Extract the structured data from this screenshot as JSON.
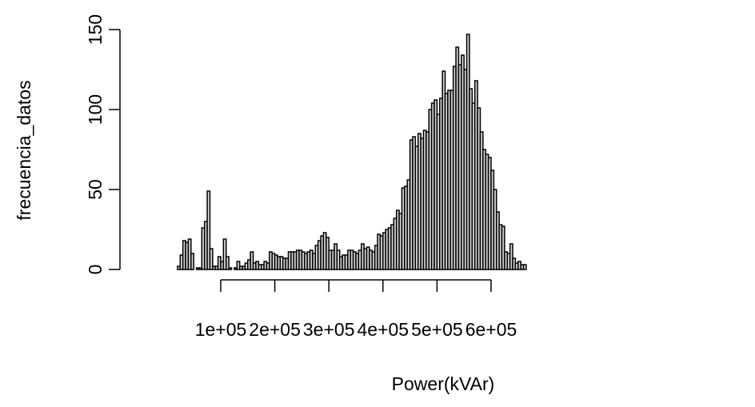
{
  "chart_data": {
    "type": "histogram",
    "title": "",
    "xlabel": "Power(kVAr)",
    "ylabel": "frecuencia_datos",
    "xlim": [
      0,
      650000
    ],
    "ylim": [
      0,
      150
    ],
    "bin_width": 5000,
    "bin_start": 20000,
    "x_ticks": [
      100000,
      200000,
      300000,
      400000,
      500000,
      600000
    ],
    "x_tick_labels": [
      "1e+05",
      "2e+05",
      "3e+05",
      "4e+05",
      "5e+05",
      "6e+05"
    ],
    "y_ticks": [
      0,
      50,
      100,
      150
    ],
    "y_tick_labels": [
      "0",
      "50",
      "100",
      "150"
    ],
    "bar_fill": "#d3d3d3",
    "bar_stroke": "#000000",
    "values": [
      2,
      9,
      18,
      17,
      19,
      10,
      0,
      1,
      1,
      26,
      30,
      49,
      13,
      2,
      2,
      8,
      5,
      19,
      8,
      1,
      0,
      1,
      5,
      2,
      2,
      4,
      6,
      11,
      4,
      5,
      3,
      3,
      5,
      4,
      11,
      10,
      9,
      8,
      8,
      7,
      7,
      11,
      11,
      11,
      12,
      12,
      11,
      10,
      11,
      12,
      10,
      15,
      18,
      21,
      23,
      20,
      12,
      12,
      16,
      12,
      8,
      9,
      9,
      12,
      12,
      11,
      10,
      12,
      16,
      13,
      14,
      12,
      11,
      15,
      22,
      21,
      23,
      25,
      26,
      28,
      32,
      37,
      35,
      51,
      52,
      56,
      81,
      83,
      77,
      85,
      82,
      87,
      86,
      100,
      104,
      106,
      97,
      107,
      124,
      110,
      112,
      112,
      127,
      139,
      128,
      134,
      125,
      147,
      113,
      104,
      118,
      101,
      86,
      75,
      72,
      70,
      62,
      50,
      36,
      28,
      27,
      11,
      10,
      16,
      7,
      4,
      5,
      3,
      3
    ]
  }
}
